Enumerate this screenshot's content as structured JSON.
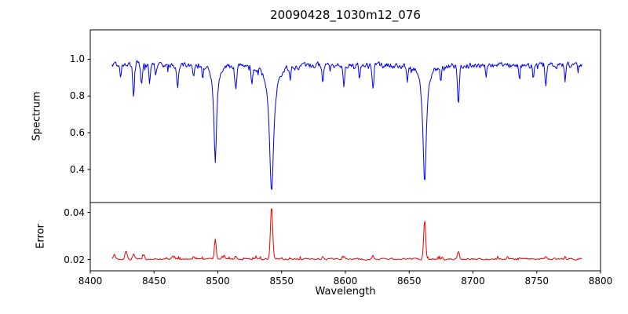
{
  "figure": {
    "title": "20090428_1030m12_076",
    "xlabel": "Wavelength",
    "ylabel_top": "Spectrum",
    "ylabel_bottom": "Error",
    "background_color": "#ffffff",
    "axis_color": "#000000"
  },
  "x_axis": {
    "xlim": [
      8400,
      8800
    ],
    "ticks": [
      8400,
      8450,
      8500,
      8550,
      8600,
      8650,
      8700,
      8750,
      8800
    ]
  },
  "chart_data": [
    {
      "panel": "spectrum",
      "type": "line",
      "series_name": "spectrum",
      "color": "#0000ee",
      "xlim": [
        8400,
        8800
      ],
      "ylim": [
        0.22,
        1.16
      ],
      "yticks": [
        0.4,
        0.6,
        0.8,
        1.0
      ],
      "tick_decimals": 1,
      "x_start": 8417,
      "x_end": 8786,
      "x_step": 0.6,
      "continuum": 0.968,
      "noise_amplitude": 0.024,
      "strong_absorption_lines": [
        {
          "center": 8498.0,
          "depth": 0.54,
          "width": 1.3
        },
        {
          "center": 8542.1,
          "depth": 0.7,
          "width": 2.0
        },
        {
          "center": 8662.1,
          "depth": 0.65,
          "width": 1.6
        }
      ],
      "weak_absorption_lines": [
        {
          "center": 8423.8,
          "depth": 0.08,
          "width": 0.8
        },
        {
          "center": 8434.0,
          "depth": 0.19,
          "width": 0.9
        },
        {
          "center": 8440.2,
          "depth": 0.11,
          "width": 0.8
        },
        {
          "center": 8446.5,
          "depth": 0.09,
          "width": 0.7
        },
        {
          "center": 8451.2,
          "depth": 0.07,
          "width": 0.7
        },
        {
          "center": 8468.4,
          "depth": 0.12,
          "width": 0.9
        },
        {
          "center": 8481.0,
          "depth": 0.07,
          "width": 0.7
        },
        {
          "center": 8488.0,
          "depth": 0.06,
          "width": 0.7
        },
        {
          "center": 8514.1,
          "depth": 0.12,
          "width": 0.9
        },
        {
          "center": 8526.7,
          "depth": 0.09,
          "width": 0.8
        },
        {
          "center": 8556.8,
          "depth": 0.07,
          "width": 0.7
        },
        {
          "center": 8582.3,
          "depth": 0.09,
          "width": 0.8
        },
        {
          "center": 8598.8,
          "depth": 0.1,
          "width": 0.8
        },
        {
          "center": 8611.0,
          "depth": 0.07,
          "width": 0.7
        },
        {
          "center": 8621.6,
          "depth": 0.11,
          "width": 0.9
        },
        {
          "center": 8648.5,
          "depth": 0.08,
          "width": 0.7
        },
        {
          "center": 8674.8,
          "depth": 0.09,
          "width": 0.8
        },
        {
          "center": 8688.6,
          "depth": 0.2,
          "width": 1.0
        },
        {
          "center": 8710.4,
          "depth": 0.07,
          "width": 0.7
        },
        {
          "center": 8736.2,
          "depth": 0.08,
          "width": 0.7
        },
        {
          "center": 8747.3,
          "depth": 0.07,
          "width": 0.7
        },
        {
          "center": 8757.1,
          "depth": 0.11,
          "width": 0.8
        },
        {
          "center": 8772.2,
          "depth": 0.09,
          "width": 0.8
        }
      ]
    },
    {
      "panel": "error",
      "type": "line",
      "series_name": "error",
      "color": "#ee0000",
      "xlim": [
        8400,
        8800
      ],
      "ylim": [
        0.0152,
        0.0442
      ],
      "yticks": [
        0.02,
        0.04
      ],
      "tick_decimals": 2,
      "x_start": 8417,
      "x_end": 8786,
      "x_step": 0.6,
      "baseline": 0.0202,
      "noise_amplitude": 0.0005,
      "peaks": [
        {
          "center": 8419.0,
          "height": 0.0018,
          "width": 1.0
        },
        {
          "center": 8428.0,
          "height": 0.0038,
          "width": 1.2
        },
        {
          "center": 8434.0,
          "height": 0.002,
          "width": 1.0
        },
        {
          "center": 8442.0,
          "height": 0.0016,
          "width": 0.9
        },
        {
          "center": 8465.0,
          "height": 0.0014,
          "width": 0.9
        },
        {
          "center": 8481.0,
          "height": 0.001,
          "width": 0.8
        },
        {
          "center": 8498.0,
          "height": 0.0085,
          "width": 1.0
        },
        {
          "center": 8505.0,
          "height": 0.0014,
          "width": 0.8
        },
        {
          "center": 8514.1,
          "height": 0.0013,
          "width": 0.9
        },
        {
          "center": 8542.1,
          "height": 0.023,
          "width": 1.2
        },
        {
          "center": 8582.3,
          "height": 0.001,
          "width": 0.8
        },
        {
          "center": 8598.8,
          "height": 0.0011,
          "width": 0.8
        },
        {
          "center": 8621.6,
          "height": 0.0013,
          "width": 0.9
        },
        {
          "center": 8662.1,
          "height": 0.016,
          "width": 1.1
        },
        {
          "center": 8676.0,
          "height": 0.001,
          "width": 0.8
        },
        {
          "center": 8688.6,
          "height": 0.0032,
          "width": 1.0
        },
        {
          "center": 8727.0,
          "height": 0.001,
          "width": 0.8
        },
        {
          "center": 8757.1,
          "height": 0.0014,
          "width": 0.9
        },
        {
          "center": 8772.2,
          "height": 0.0012,
          "width": 0.8
        }
      ]
    }
  ]
}
